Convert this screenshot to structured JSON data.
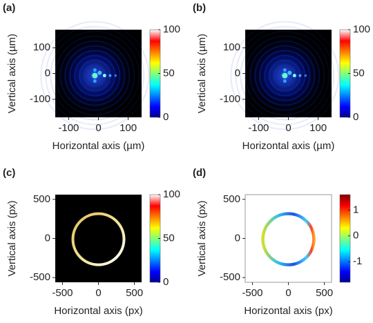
{
  "chart_data": [
    {
      "type": "heatmap",
      "label": "(a)",
      "xlabel": "Horizontal axis (µm)",
      "ylabel": "Vertical axis (µm)",
      "xlim": [
        -145,
        145
      ],
      "ylim": [
        -170,
        170
      ],
      "xticks": [
        -100,
        0,
        100
      ],
      "yticks": [
        -100,
        0,
        100
      ],
      "colorbar": {
        "lim": [
          0,
          100
        ],
        "ticks": [
          0,
          50,
          100
        ]
      },
      "style": "diffraction"
    },
    {
      "type": "heatmap",
      "label": "(b)",
      "xlabel": "Horizontal axis (µm)",
      "ylabel": "Vertical axis (µm)",
      "xlim": [
        -145,
        145
      ],
      "ylim": [
        -170,
        170
      ],
      "xticks": [
        -100,
        0,
        100
      ],
      "yticks": [
        -100,
        0,
        100
      ],
      "colorbar": {
        "lim": [
          0,
          100
        ],
        "ticks": [
          0,
          50,
          100
        ]
      },
      "style": "diffraction"
    },
    {
      "type": "heatmap",
      "label": "(c)",
      "xlabel": "Horizontal axis (px)",
      "ylabel": "Vertical axis (px)",
      "xlim": [
        -600,
        600
      ],
      "ylim": [
        -560,
        560
      ],
      "xticks": [
        -500,
        0,
        500
      ],
      "yticks": [
        -500,
        0,
        500
      ],
      "colorbar": {
        "lim": [
          0,
          100
        ],
        "ticks": [
          0,
          50,
          100
        ]
      },
      "style": "ring-amplitude"
    },
    {
      "type": "heatmap",
      "label": "(d)",
      "xlabel": "Horizontal axis (px)",
      "ylabel": "Vertical axis (px)",
      "xlim": [
        -600,
        600
      ],
      "ylim": [
        -560,
        560
      ],
      "xticks": [
        -500,
        0,
        500
      ],
      "yticks": [
        -500,
        0,
        500
      ],
      "colorbar": {
        "lim": [
          -1.8,
          1.6
        ],
        "ticks": [
          -1,
          0,
          1
        ]
      },
      "style": "ring-phase"
    }
  ]
}
